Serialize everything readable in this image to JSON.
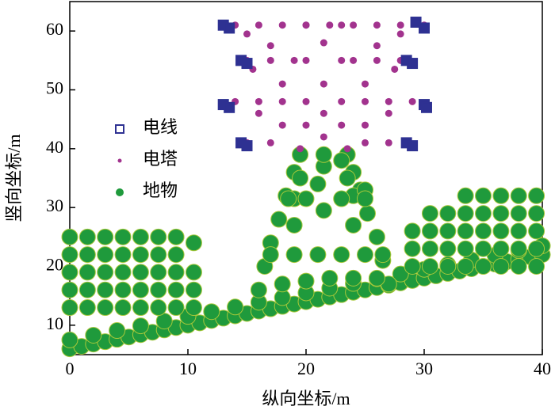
{
  "chart_data": {
    "type": "scatter",
    "xlabel": "纵向坐标/m",
    "ylabel": "竖向坐标/m",
    "xlim": [
      0,
      40
    ],
    "ylim": [
      5,
      65
    ],
    "xticks": [
      0,
      10,
      20,
      30,
      40
    ],
    "yticks": [
      10,
      20,
      30,
      40,
      50,
      60
    ],
    "series": [
      {
        "name": "电线",
        "color": "#2e3192",
        "marker": "square",
        "x": [
          13,
          13.5,
          14.5,
          15,
          13,
          13.5,
          14.5,
          15,
          29.3,
          30,
          28.5,
          29,
          30,
          30.2,
          28.5,
          29
        ],
        "y": [
          61,
          60.5,
          55,
          54.5,
          47.5,
          47,
          41,
          40.5,
          61.5,
          60.5,
          55,
          54.5,
          47.5,
          47,
          41,
          40.5
        ]
      },
      {
        "name": "电塔",
        "color": "#a2338e",
        "marker": "dot",
        "x": [
          19.5,
          23.5,
          20,
          23,
          21.5,
          20,
          23,
          21.5,
          20,
          23,
          21.5,
          20,
          23,
          21.5,
          14,
          16,
          18,
          20,
          22,
          24,
          26,
          28,
          30,
          15,
          17,
          19,
          24,
          26,
          28,
          14,
          16,
          18,
          25,
          27,
          29,
          15,
          17,
          25,
          27,
          15,
          17,
          26,
          28,
          15.5,
          18,
          25,
          27.5,
          16,
          18,
          25,
          27
        ],
        "y": [
          40,
          40,
          44,
          44,
          42,
          48,
          48,
          51,
          55,
          55,
          58,
          61,
          61,
          46,
          61,
          61,
          61,
          61,
          61,
          61,
          61,
          61,
          61,
          55,
          55,
          55,
          55,
          55,
          55,
          48,
          48,
          48,
          48,
          48,
          48,
          41,
          41,
          41,
          41,
          59.5,
          57.5,
          57.5,
          59.5,
          53.5,
          51,
          51,
          53.5,
          46,
          44,
          44,
          46
        ]
      },
      {
        "name": "地物",
        "color": "#1f9a3c",
        "marker": "circle",
        "x": [
          0,
          1,
          2,
          3,
          4,
          5,
          6,
          7,
          8,
          9,
          10,
          11,
          12,
          13,
          14,
          15,
          16,
          17,
          18,
          19,
          20,
          21,
          22,
          23,
          24,
          25,
          26,
          27,
          28,
          29,
          30,
          31,
          32,
          33,
          34,
          35,
          36,
          37,
          38,
          39,
          40,
          0,
          2,
          4,
          6,
          8,
          10,
          12,
          14,
          16,
          18,
          20,
          22,
          24,
          26,
          28,
          30,
          32,
          34,
          36,
          38,
          40,
          0,
          0,
          0,
          0,
          0,
          1.5,
          1.5,
          1.5,
          1.5,
          1.5,
          3,
          3,
          3,
          3,
          3,
          4.5,
          4.5,
          4.5,
          4.5,
          4.5,
          6,
          6,
          6,
          6,
          6,
          7.5,
          7.5,
          7.5,
          7.5,
          7.5,
          9,
          9,
          9,
          9,
          9,
          10.5,
          10.5,
          10.5,
          10.5,
          29,
          29,
          29,
          30.5,
          30.5,
          30.5,
          30.5,
          32,
          32,
          32,
          32,
          33.5,
          33.5,
          33.5,
          33.5,
          33.5,
          35,
          35,
          35,
          35,
          35,
          36.5,
          36.5,
          36.5,
          36.5,
          36.5,
          38,
          38,
          38,
          38,
          38,
          39.5,
          39.5,
          39.5,
          39.5,
          39.5,
          16,
          16.5,
          17,
          17.7,
          18.3,
          19,
          19.5,
          27,
          26.5,
          26,
          25.2,
          24.6,
          24,
          23.5,
          19,
          21.5,
          24,
          25,
          24,
          19,
          18.5,
          20,
          23,
          25,
          17,
          19,
          21,
          23,
          25,
          26.5,
          18,
          20,
          22,
          24,
          26,
          19.5,
          21.5,
          23,
          23.5,
          21,
          21.5
        ],
        "y": [
          6,
          6.4,
          6.8,
          7.2,
          7.6,
          8,
          8.4,
          8.8,
          9.2,
          9.6,
          10,
          10.4,
          10.8,
          11.2,
          11.6,
          12,
          12.4,
          12.8,
          13.2,
          13.6,
          14,
          14.4,
          14.8,
          15.2,
          15.6,
          16,
          16.4,
          16.8,
          17.2,
          17.6,
          18,
          18.4,
          18.8,
          19.2,
          19.6,
          20,
          20.4,
          20.8,
          21.2,
          21.6,
          22,
          7.5,
          8.3,
          9.1,
          9.9,
          10.7,
          11.5,
          12.3,
          13.1,
          13.9,
          14.7,
          15.5,
          16.3,
          17.1,
          17.9,
          18.7,
          19.5,
          20.3,
          21.1,
          21.9,
          22.7,
          23.5,
          13,
          16,
          19,
          22,
          25,
          13,
          16,
          19,
          22,
          25,
          13,
          16,
          19,
          22,
          25,
          13,
          16,
          19,
          22,
          25,
          13,
          16,
          19,
          22,
          25,
          13,
          16,
          19,
          22,
          25,
          13,
          16,
          19,
          22,
          25,
          13,
          16,
          19,
          24,
          20,
          23,
          26,
          20,
          23,
          26,
          29,
          20,
          23,
          26,
          29,
          20,
          23,
          26,
          29,
          32,
          20,
          23,
          26,
          29,
          32,
          20,
          23,
          26,
          29,
          32,
          20,
          23,
          26,
          29,
          32,
          20,
          23,
          26,
          29,
          32,
          16,
          20,
          24,
          28,
          32,
          36,
          39,
          17,
          21,
          25,
          29,
          33,
          36,
          39,
          27,
          29.5,
          32,
          33,
          27,
          31.5,
          31.5,
          31.5,
          31.5,
          31.5,
          22,
          22,
          22,
          22,
          22,
          22,
          17,
          17.5,
          18,
          18,
          18,
          35,
          37,
          38,
          35,
          34,
          39
        ]
      }
    ]
  }
}
